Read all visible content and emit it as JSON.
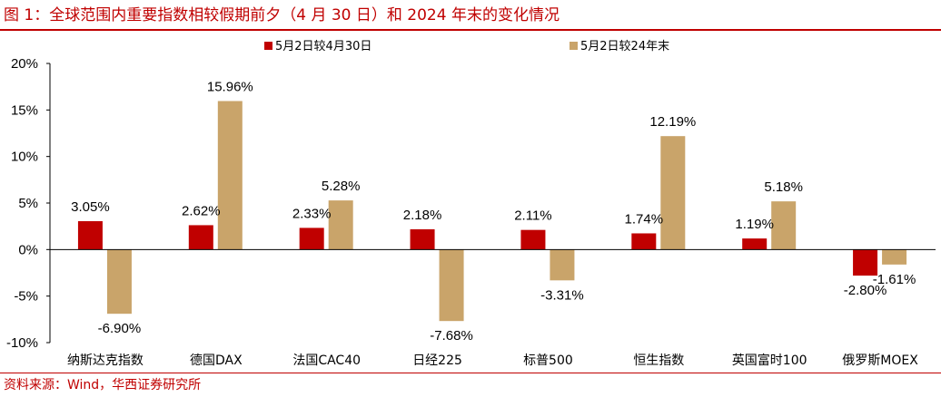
{
  "figure": {
    "title": "图 1：全球范围内重要指数相较假期前夕（4 月 30 日）和 2024 年末的变化情况",
    "source": "资料来源：Wind，华西证券研究所"
  },
  "colors": {
    "accent": "#c00000",
    "series1": "#c00000",
    "series2": "#c9a46a"
  },
  "chart_data": {
    "type": "bar",
    "categories": [
      "纳斯达克指数",
      "德国DAX",
      "法国CAC40",
      "日经225",
      "标普500",
      "恒生指数",
      "英国富时100",
      "俄罗斯MOEX"
    ],
    "series": [
      {
        "name": "5月2日较4月30日",
        "values": [
          3.05,
          2.62,
          2.33,
          2.18,
          2.11,
          1.74,
          1.19,
          -2.8
        ],
        "labels": [
          "3.05%",
          "2.62%",
          "2.33%",
          "2.18%",
          "2.11%",
          "1.74%",
          "1.19%",
          "-2.80%"
        ]
      },
      {
        "name": "5月2日较24年末",
        "values": [
          -6.9,
          15.96,
          5.28,
          -7.68,
          -3.31,
          12.19,
          5.18,
          -1.61
        ],
        "labels": [
          "-6.90%",
          "15.96%",
          "5.28%",
          "-7.68%",
          "-3.31%",
          "12.19%",
          "5.18%",
          "-1.61%"
        ]
      }
    ],
    "yticks": [
      20,
      15,
      10,
      5,
      0,
      -5,
      -10
    ],
    "ytick_labels": [
      "20%",
      "15%",
      "10%",
      "5%",
      "0%",
      "-5%",
      "-10%"
    ],
    "ylim": [
      -10,
      20
    ],
    "legend_position": "top",
    "grid": false
  }
}
